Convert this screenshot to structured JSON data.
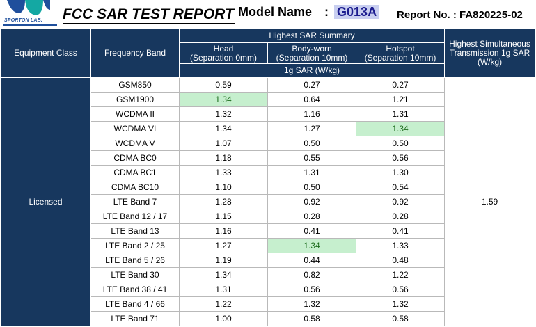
{
  "header": {
    "logo_text": "SPORTON LAB.",
    "title": "FCC SAR TEST REPORT",
    "model_label": "Model Name",
    "model_colon": ":",
    "model_value": "G013A",
    "report_label": "Report No. : FA820225-02"
  },
  "colors": {
    "header_bg": "#17375e",
    "highlight_bg": "#c6efce",
    "model_highlight": "#c9cff0"
  },
  "table": {
    "headers": {
      "equipment_class": "Equipment Class",
      "frequency_band": "Frequency Band",
      "summary": "Highest SAR Summary",
      "head": "Head",
      "head_sep": "(Separation 0mm)",
      "body": "Body-worn",
      "body_sep": "(Separation 10mm)",
      "hotspot": "Hotspot",
      "hotspot_sep": "(Separation 10mm)",
      "unit": "1g SAR (W/kg)",
      "simultaneous": "Highest Simultaneous Transmission 1g SAR (W/kg)"
    },
    "equipment_class": "Licensed",
    "simultaneous_value": "1.59",
    "rows": [
      {
        "band": "GSM850",
        "head": "0.59",
        "body": "0.27",
        "hotspot": "0.27"
      },
      {
        "band": "GSM1900",
        "head": "1.34",
        "body": "0.64",
        "hotspot": "1.21"
      },
      {
        "band": "WCDMA II",
        "head": "1.32",
        "body": "1.16",
        "hotspot": "1.31"
      },
      {
        "band": "WCDMA VI",
        "head": "1.34",
        "body": "1.27",
        "hotspot": "1.34"
      },
      {
        "band": "WCDMA V",
        "head": "1.07",
        "body": "0.50",
        "hotspot": "0.50"
      },
      {
        "band": "CDMA BC0",
        "head": "1.18",
        "body": "0.55",
        "hotspot": "0.56"
      },
      {
        "band": "CDMA BC1",
        "head": "1.33",
        "body": "1.31",
        "hotspot": "1.30"
      },
      {
        "band": "CDMA BC10",
        "head": "1.10",
        "body": "0.50",
        "hotspot": "0.54"
      },
      {
        "band": "LTE Band 7",
        "head": "1.28",
        "body": "0.92",
        "hotspot": "0.92"
      },
      {
        "band": "LTE Band 12 / 17",
        "head": "1.15",
        "body": "0.28",
        "hotspot": "0.28"
      },
      {
        "band": "LTE Band 13",
        "head": "1.16",
        "body": "0.41",
        "hotspot": "0.41"
      },
      {
        "band": "LTE Band 2 / 25",
        "head": "1.27",
        "body": "1.34",
        "hotspot": "1.33"
      },
      {
        "band": "LTE Band 5 / 26",
        "head": "1.19",
        "body": "0.44",
        "hotspot": "0.48"
      },
      {
        "band": "LTE Band 30",
        "head": "1.34",
        "body": "0.82",
        "hotspot": "1.22"
      },
      {
        "band": "LTE Band 38 / 41",
        "head": "1.31",
        "body": "0.56",
        "hotspot": "0.56"
      },
      {
        "band": "LTE Band 4 / 66",
        "head": "1.22",
        "body": "1.32",
        "hotspot": "1.32"
      },
      {
        "band": "LTE Band 71",
        "head": "1.00",
        "body": "0.58",
        "hotspot": "0.58"
      }
    ]
  }
}
